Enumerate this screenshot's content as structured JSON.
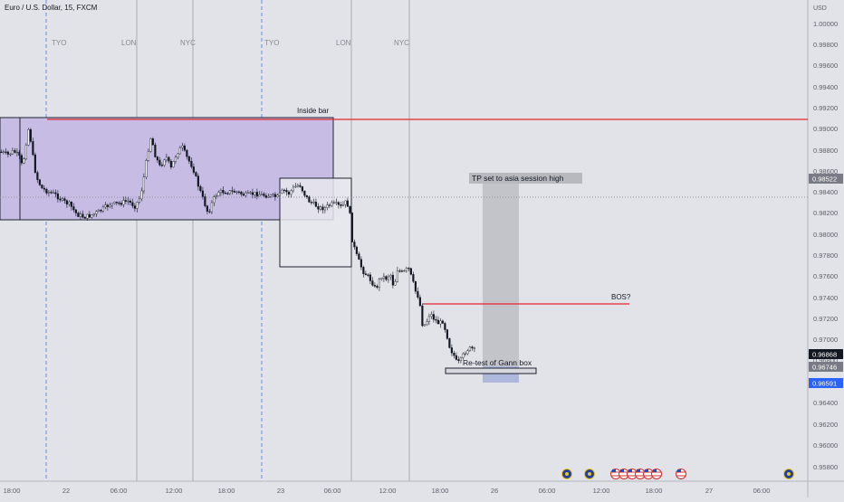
{
  "header": {
    "symbol_title": "Euro / U.S. Dollar, 15, FXCM"
  },
  "price_axis": {
    "currency": "USD",
    "ticks": [
      "1.00000",
      "0.99800",
      "0.99600",
      "0.99400",
      "0.99200",
      "0.99000",
      "0.98800",
      "0.98600",
      "0.98400",
      "0.98200",
      "0.98000",
      "0.97800",
      "0.97600",
      "0.97400",
      "0.97200",
      "0.97000",
      "0.96800",
      "0.96600",
      "0.96400",
      "0.96200",
      "0.96000",
      "0.95800"
    ],
    "labels": [
      {
        "text": "0.98522",
        "color": "#787b86"
      },
      {
        "text": "0.96868",
        "color": "#131722"
      },
      {
        "text": "0.96746",
        "color": "#787b86"
      },
      {
        "text": "0.96591",
        "color": "#2962ff"
      }
    ]
  },
  "time_axis": {
    "ticks": [
      "18:00",
      "22",
      "06:00",
      "12:00",
      "18:00",
      "23",
      "06:00",
      "12:00",
      "18:00",
      "26",
      "06:00",
      "12:00",
      "18:00",
      "27",
      "06:00"
    ]
  },
  "sessions": [
    "TYO",
    "LON",
    "NYC",
    "TYO",
    "LON",
    "NYC"
  ],
  "annotations": {
    "inside_bar": "Inside bar",
    "tp_note": "TP set to asia session high",
    "bos": "BOS?",
    "retest": "Re-test of Gann box"
  },
  "colors": {
    "background": "#e1e3e8",
    "bull_candle": "#ffffff",
    "bear_candle": "#131722",
    "resistance_line": "#e3282f",
    "range_box_fill": "#c7bde4",
    "projection_fill": "#c2c4ca",
    "retest_fill": "#aeb8dc",
    "session_line": "#a9abb3",
    "session_dashed": "#5b8ee8",
    "ann_label_bg": "#b7b9bf"
  },
  "chart_data": {
    "type": "candlestick",
    "title": "Euro / U.S. Dollar, 15, FXCM",
    "ylabel": "USD",
    "ylim": [
      0.9573,
      1.0015
    ],
    "inside_bar_high": 0.99065,
    "bos_level": 0.97335,
    "events": [
      "icon-1",
      "icon-2",
      "icon-3",
      "icon-4",
      "icon-5",
      "icon-6",
      "icon-7",
      "icon-8",
      "icon-9"
    ]
  }
}
